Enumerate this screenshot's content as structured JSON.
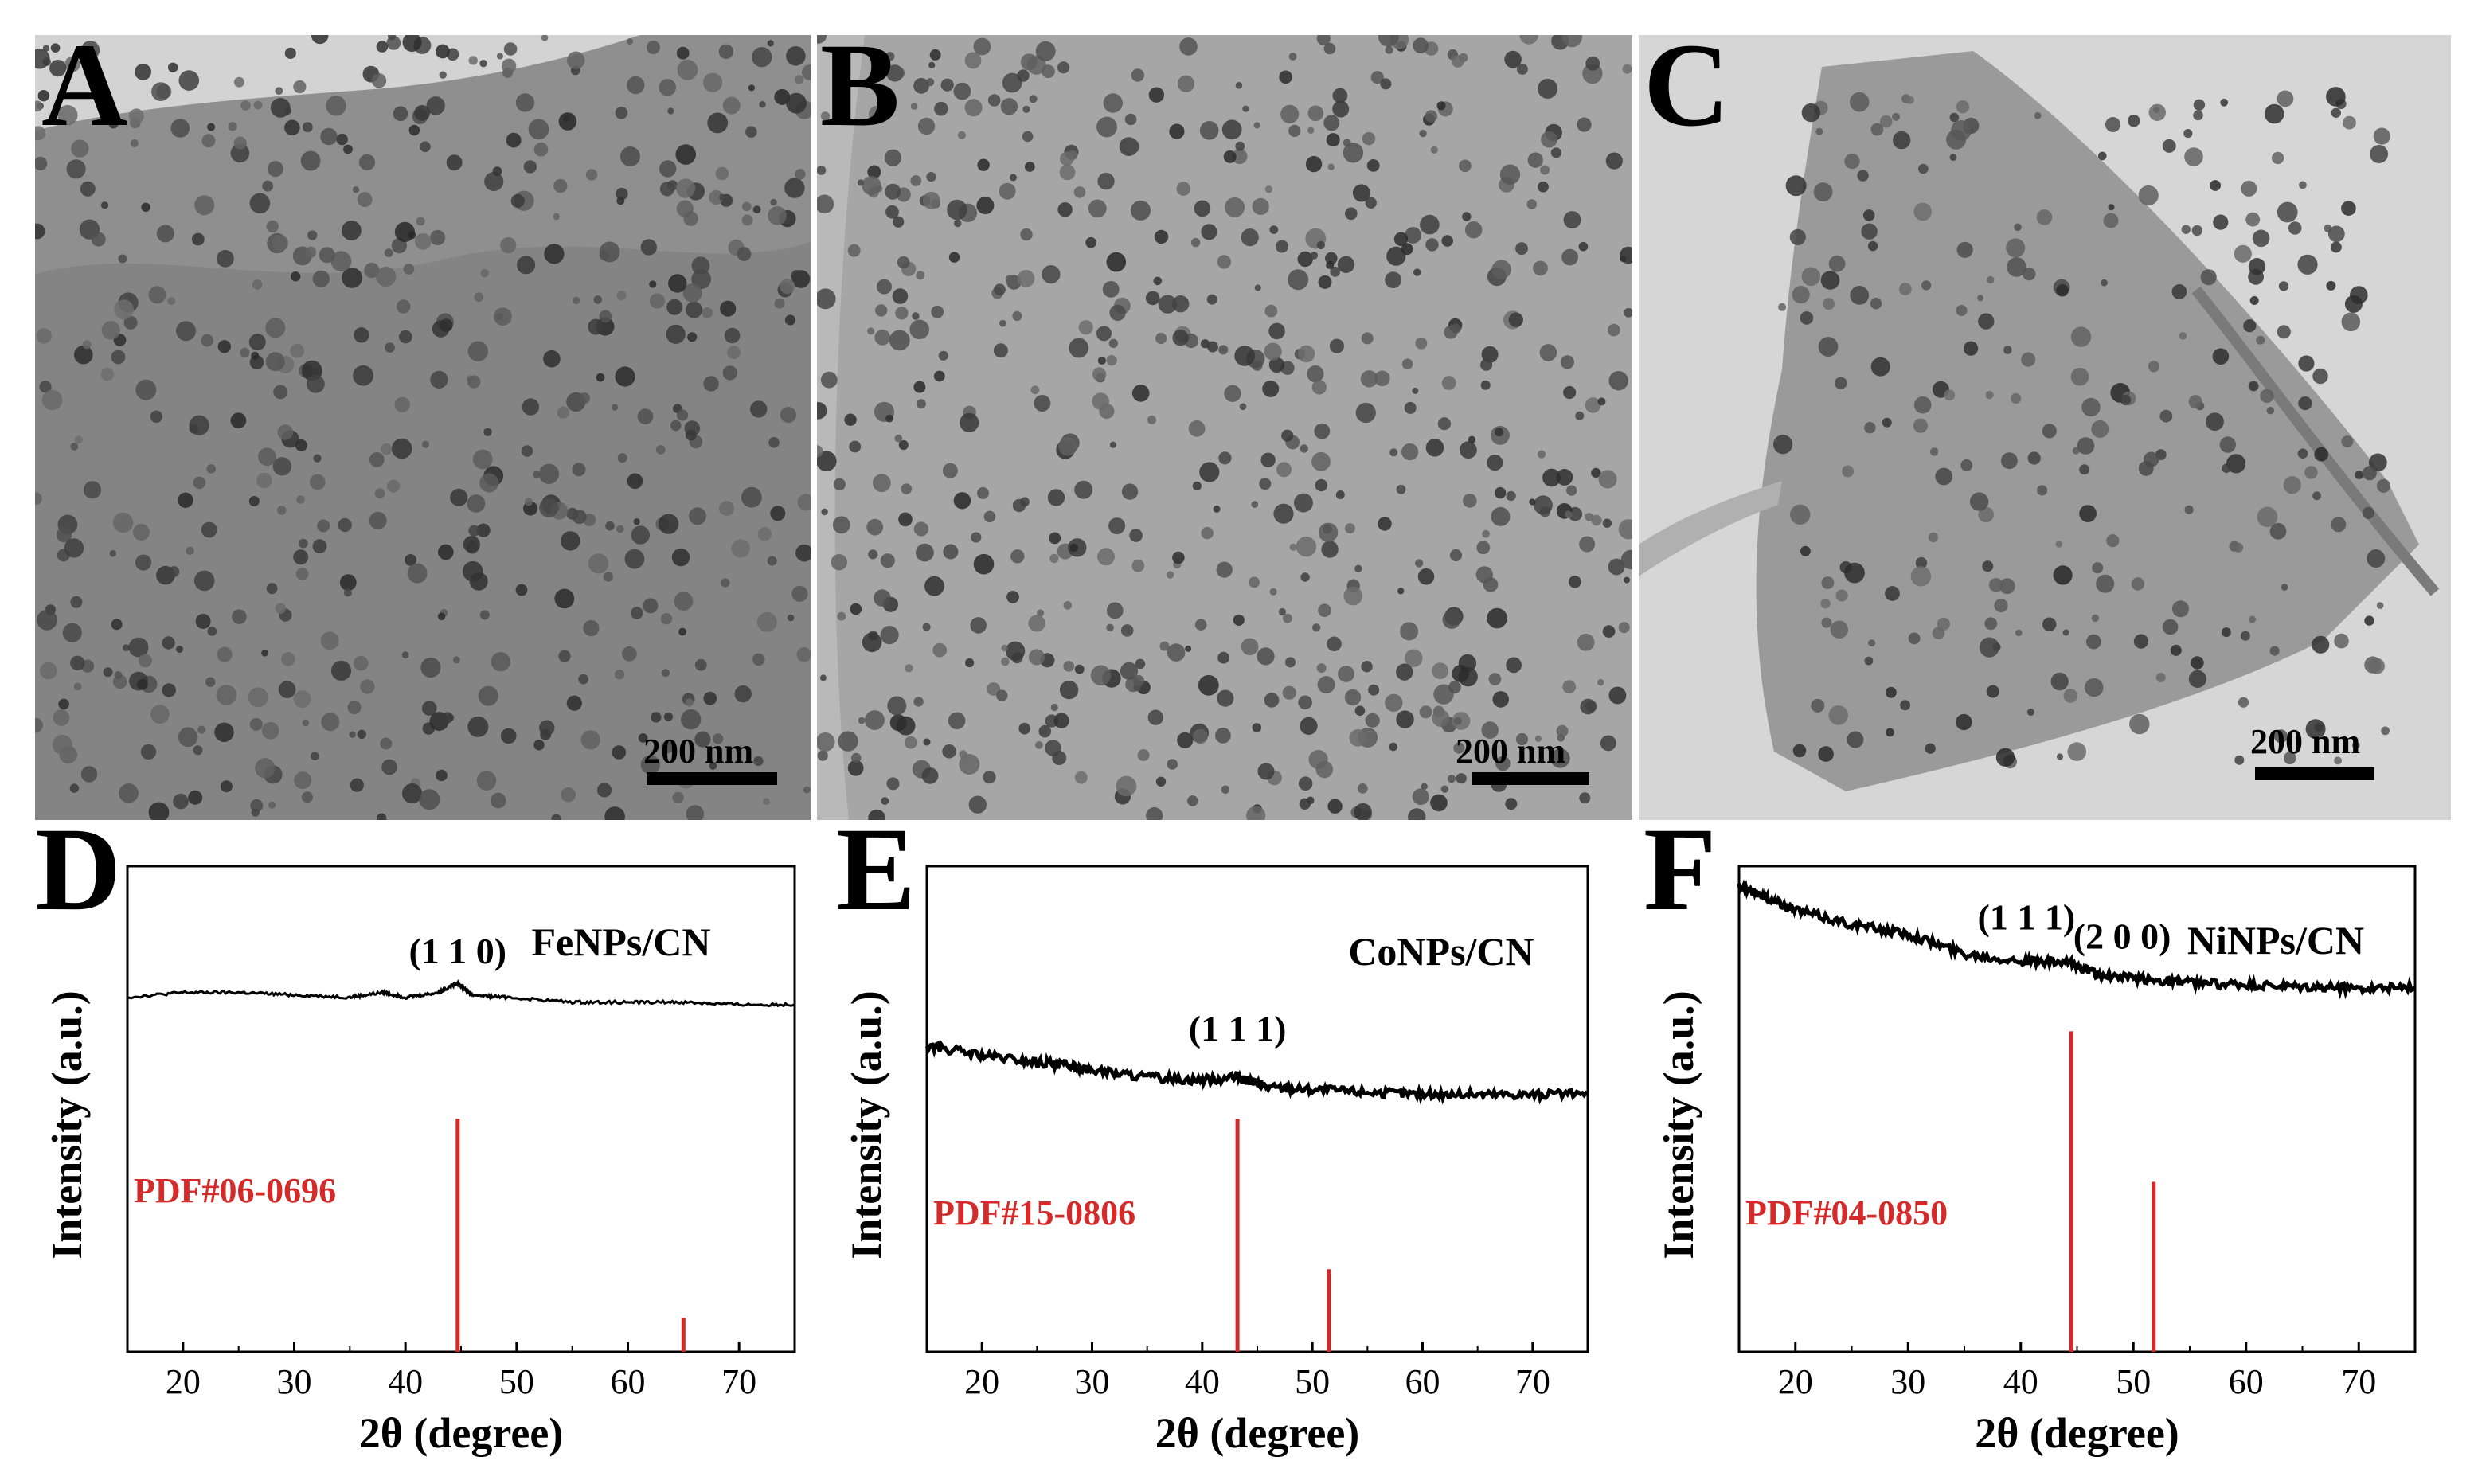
{
  "figure": {
    "panels": [
      {
        "letter": "A",
        "scale_bar": "200 nm",
        "image_desc": "TEM image of FeNPs/CN"
      },
      {
        "letter": "B",
        "scale_bar": "200 nm",
        "image_desc": "TEM image of CoNPs/CN"
      },
      {
        "letter": "C",
        "scale_bar": "200 nm",
        "image_desc": "TEM image of NiNPs/CN"
      }
    ]
  },
  "colors": {
    "curve": "#000000",
    "reference": "#d42a2a",
    "tem_bg": "#a9a9a9",
    "grid_bg": "#d6d6d6"
  },
  "chart_data": [
    {
      "panel": "D",
      "type": "line",
      "title": "FeNPs/CN",
      "xlabel": "2θ (degree)",
      "ylabel": "Intensity (a.u.)",
      "xlim": [
        15,
        75
      ],
      "ylim": [
        0,
        1
      ],
      "xticks": [
        "20",
        "30",
        "40",
        "50",
        "60",
        "70"
      ],
      "series": [
        {
          "name": "FeNPs/CN",
          "x": [
            15,
            20,
            25,
            30,
            35,
            38,
            40,
            43,
            44.7,
            46,
            49,
            55,
            60,
            65,
            70,
            75
          ],
          "y": [
            0.73,
            0.74,
            0.74,
            0.735,
            0.73,
            0.74,
            0.73,
            0.74,
            0.76,
            0.735,
            0.73,
            0.72,
            0.72,
            0.72,
            0.715,
            0.715
          ]
        }
      ],
      "peak_labels": [
        {
          "text": "(1 1 0)",
          "x": 44.7
        }
      ],
      "reference": {
        "label": "PDF#06-0696",
        "x": [
          44.7,
          65.0
        ],
        "height": [
          0.48,
          0.07
        ]
      }
    },
    {
      "panel": "E",
      "type": "line",
      "title": "CoNPs/CN",
      "xlabel": "2θ (degree)",
      "ylabel": "Intensity (a.u.)",
      "xlim": [
        15,
        75
      ],
      "ylim": [
        0,
        1
      ],
      "xticks": [
        "20",
        "30",
        "40",
        "50",
        "60",
        "70"
      ],
      "series": [
        {
          "name": "CoNPs/CN",
          "x": [
            15,
            20,
            25,
            28,
            30,
            35,
            40,
            43.2,
            46,
            50,
            55,
            60,
            65,
            70,
            75
          ],
          "y": [
            0.63,
            0.61,
            0.595,
            0.59,
            0.58,
            0.565,
            0.56,
            0.565,
            0.545,
            0.54,
            0.535,
            0.53,
            0.53,
            0.53,
            0.53
          ]
        }
      ],
      "peak_labels": [
        {
          "text": "(1 1 1)",
          "x": 43.2
        }
      ],
      "reference": {
        "label": "PDF#15-0806",
        "x": [
          43.2,
          51.5
        ],
        "height": [
          0.48,
          0.17
        ]
      }
    },
    {
      "panel": "F",
      "type": "line",
      "title": "NiNPs/CN",
      "xlabel": "2θ (degree)",
      "ylabel": "Intensity (a.u.)",
      "xlim": [
        15,
        75
      ],
      "ylim": [
        0,
        1
      ],
      "xticks": [
        "20",
        "30",
        "40",
        "50",
        "60",
        "70"
      ],
      "series": [
        {
          "name": "NiNPs/CN",
          "x": [
            15,
            18,
            20,
            25,
            30,
            35,
            40,
            44.5,
            47,
            52,
            55,
            60,
            65,
            70,
            75
          ],
          "y": [
            0.96,
            0.93,
            0.91,
            0.88,
            0.86,
            0.82,
            0.805,
            0.8,
            0.775,
            0.765,
            0.76,
            0.755,
            0.75,
            0.75,
            0.75
          ]
        }
      ],
      "peak_labels": [
        {
          "text": "(1 1 1)",
          "x": 40.5
        },
        {
          "text": "(2 0 0)",
          "x": 49.0
        }
      ],
      "reference": {
        "label": "PDF#04-0850",
        "x": [
          44.5,
          51.8
        ],
        "height": [
          0.66,
          0.35
        ]
      }
    }
  ]
}
